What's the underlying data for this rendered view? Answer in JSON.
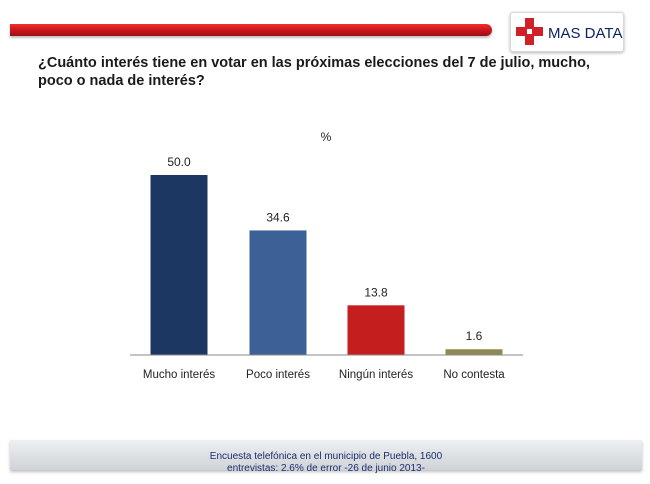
{
  "logo": {
    "text": "MAS DATA",
    "icon": "red-cross-icon",
    "cross_color": "#d0202a",
    "text_color": "#0d2463"
  },
  "question": "¿Cuánto interés tiene en votar en las próximas elecciones del 7 de julio, mucho, poco o nada de interés?",
  "footer": {
    "line1": "Encuesta telefónica en el municipio de Puebla, 1600",
    "line2": "entrevistas: 2.6% de error -26 de junio 2013-"
  },
  "chart_data": {
    "type": "bar",
    "unit_label": "%",
    "categories": [
      "Mucho interés",
      "Poco interés",
      "Ningún interés",
      "No contesta"
    ],
    "values": [
      50.0,
      34.6,
      13.8,
      1.6
    ],
    "value_labels": [
      "50.0",
      "34.6",
      "13.8",
      "1.6"
    ],
    "colors": [
      "#1c3761",
      "#3b6196",
      "#c41e1e",
      "#8f8a52"
    ],
    "ylim": [
      0,
      50
    ],
    "grid": false,
    "legend": "none"
  }
}
